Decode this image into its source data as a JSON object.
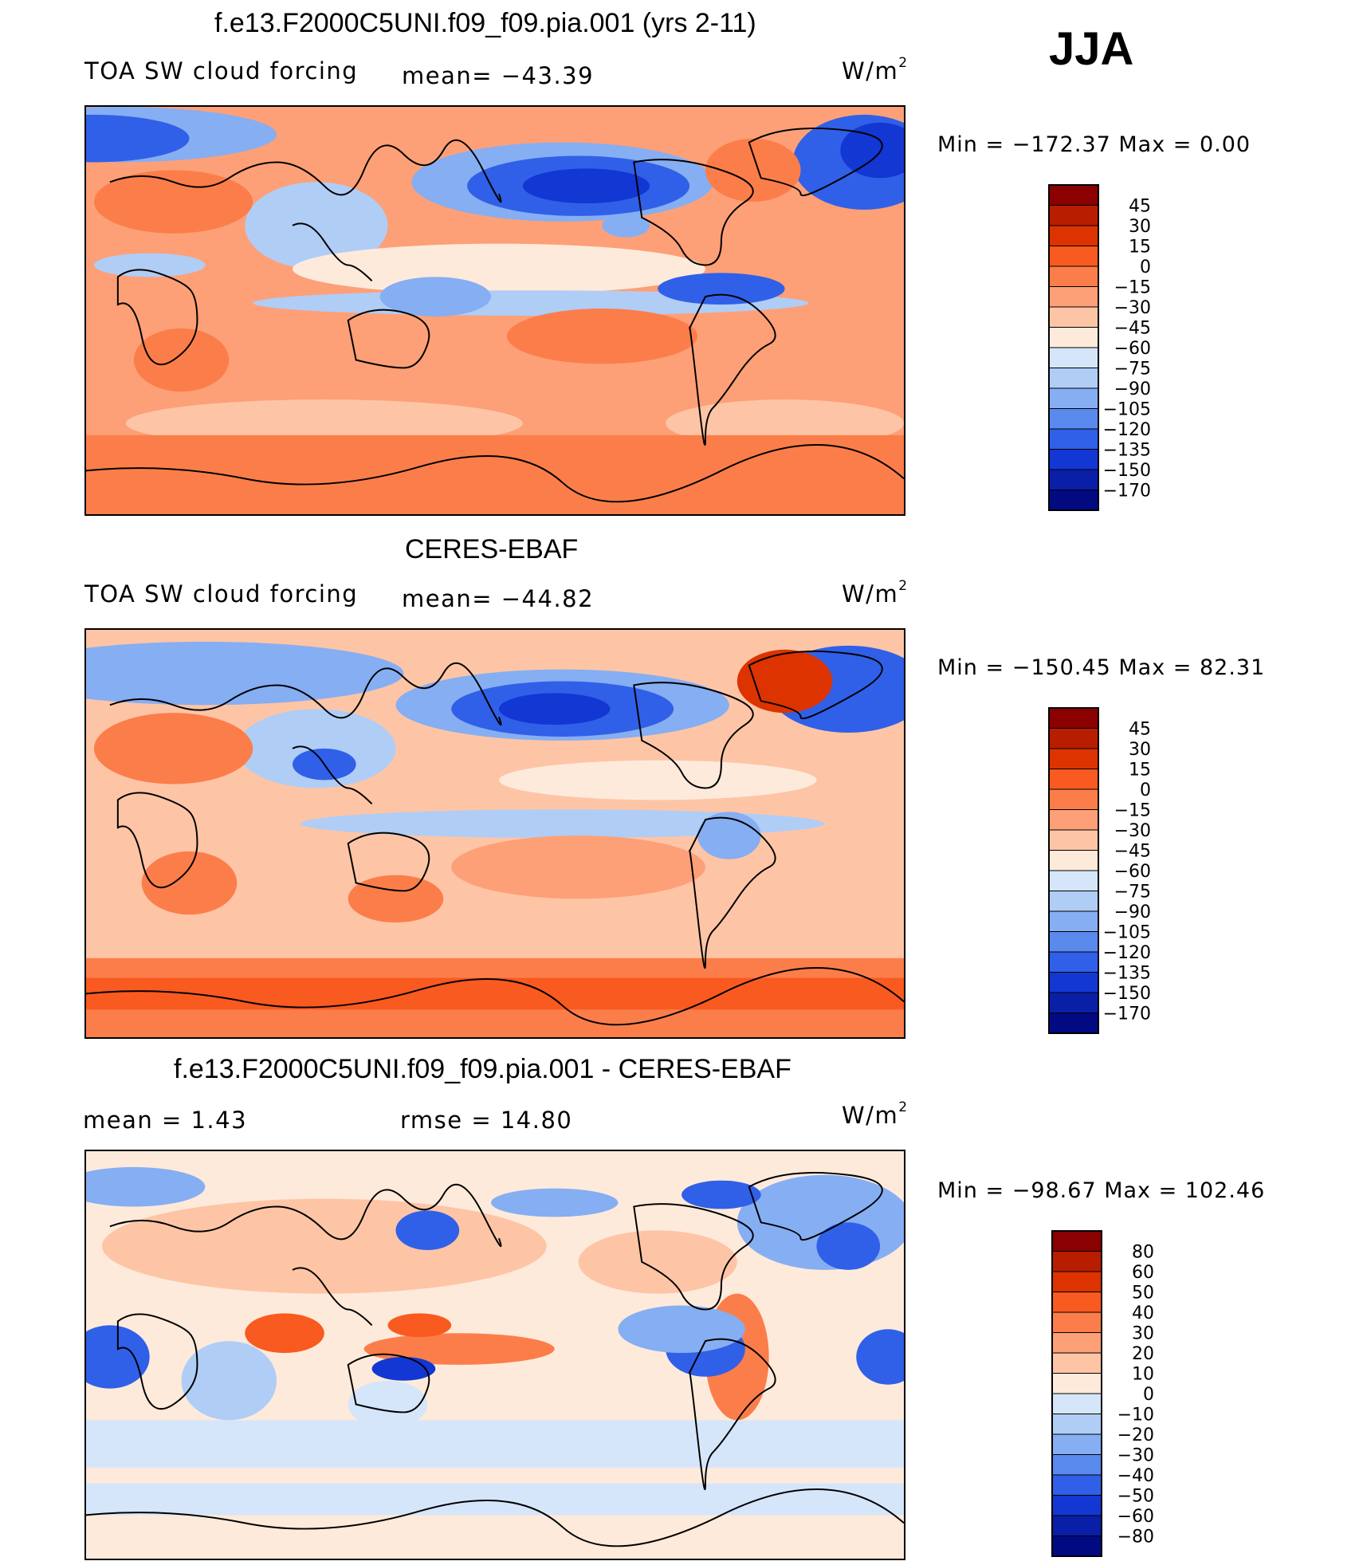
{
  "season": "JJA",
  "units_base": "W/m",
  "units_exp": "2",
  "panels": [
    {
      "title": "f.e13.F2000C5UNI.f09_f09.pia.001 (yrs 2-11)",
      "left_label": "TOA SW cloud forcing",
      "stat_label": "mean= −43.39",
      "minmax": "Min  =  −172.37  Max  =     0.00",
      "colorbar": "abs"
    },
    {
      "title": "CERES-EBAF",
      "left_label": "TOA SW cloud forcing",
      "stat_label": "mean= −44.82",
      "minmax": "Min  =  −150.45  Max  =   82.31",
      "colorbar": "abs"
    },
    {
      "title": "f.e13.F2000C5UNI.f09_f09.pia.001 - CERES-EBAF",
      "left_label": "mean  =     1.43",
      "stat_label": "rmse  =    14.80",
      "minmax": "Min  =  −98.67  Max  =  102.46",
      "colorbar": "diff"
    }
  ],
  "colorbars": {
    "abs": {
      "labels": [
        "45",
        "30",
        "15",
        "0",
        "−15",
        "−30",
        "−45",
        "−60",
        "−75",
        "−90",
        "−105",
        "−120",
        "−135",
        "−150",
        "−170"
      ],
      "colors": [
        "#8b0000",
        "#b81d00",
        "#dc3300",
        "#f95a20",
        "#fb7e4a",
        "#fda077",
        "#fdc5a6",
        "#feeadb",
        "#d5e6fa",
        "#b0cdf6",
        "#86aef2",
        "#5b8aee",
        "#3060e8",
        "#1237d2",
        "#0a1fa8",
        "#020a82"
      ]
    },
    "diff": {
      "labels": [
        "80",
        "60",
        "50",
        "40",
        "30",
        "20",
        "10",
        "0",
        "−10",
        "−20",
        "−30",
        "−40",
        "−50",
        "−60",
        "−80"
      ],
      "colors": [
        "#8b0000",
        "#b81d00",
        "#dc3300",
        "#f95a20",
        "#fb7e4a",
        "#fda077",
        "#fdc5a6",
        "#feeadb",
        "#d5e6fa",
        "#b0cdf6",
        "#86aef2",
        "#5b8aee",
        "#3060e8",
        "#1237d2",
        "#0a1fa8",
        "#020a82"
      ]
    }
  }
}
